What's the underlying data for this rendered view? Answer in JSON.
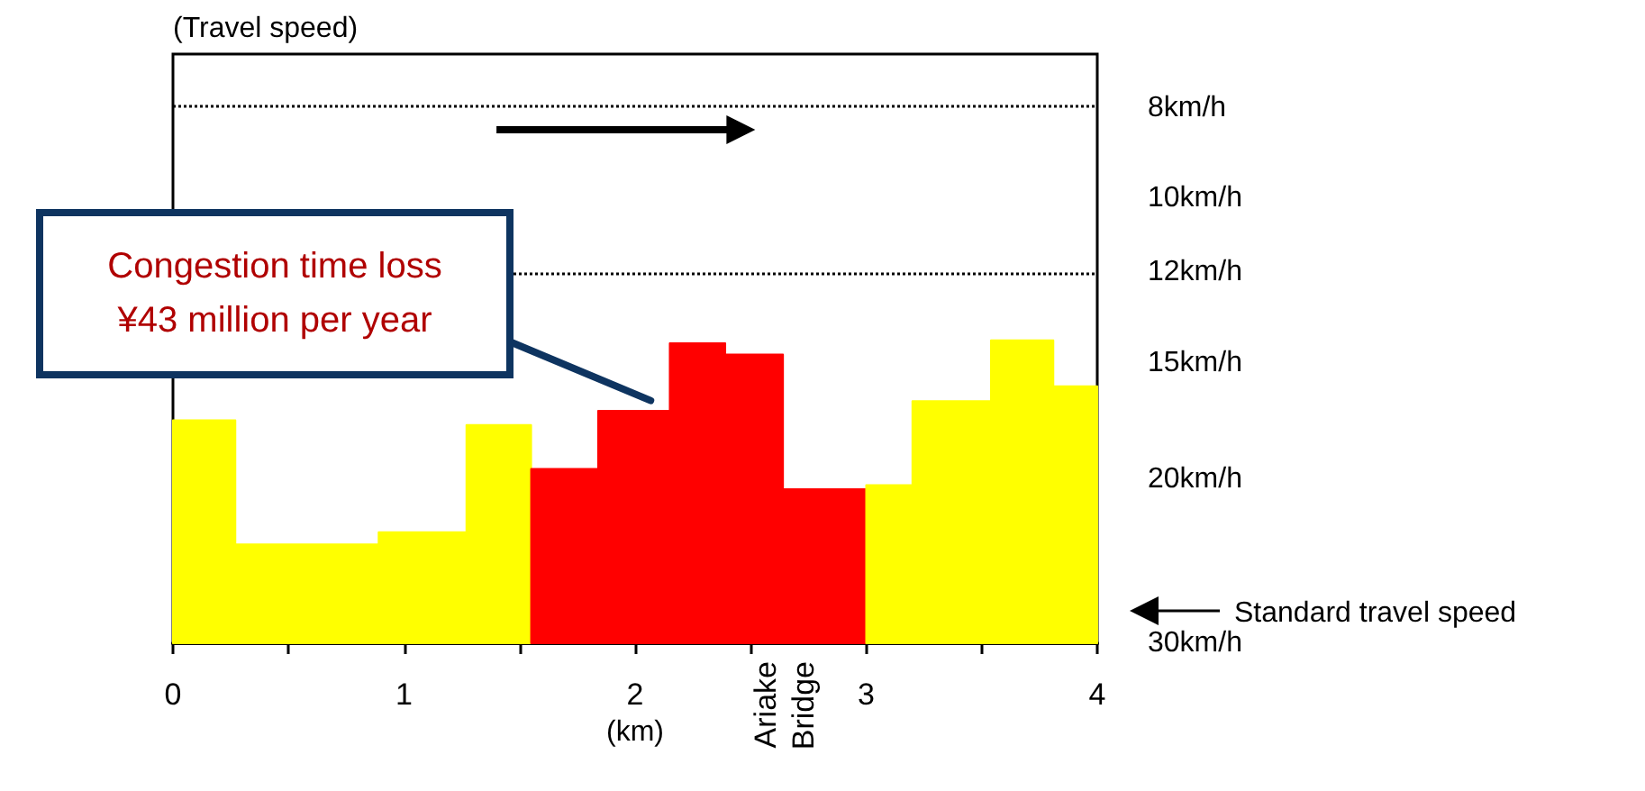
{
  "chart_data": {
    "type": "area",
    "xlabel": "(km)",
    "ylabel": "(Travel speed)",
    "xlim": [
      0,
      4
    ],
    "xticks": [
      0,
      {
        "value": 0.5,
        "label": null
      },
      1,
      {
        "value": 1.5,
        "label": null
      },
      2,
      {
        "value": 2.5,
        "label": null
      },
      3,
      {
        "value": 3.5,
        "label": null
      },
      4
    ],
    "ylim": [
      30,
      7
    ],
    "yticks": [
      {
        "value": 30,
        "label": "30km/h"
      },
      {
        "value": 20,
        "label": "20km/h"
      },
      {
        "value": 15,
        "label": "15km/h"
      },
      {
        "value": 12,
        "label": "12km/h"
      },
      {
        "value": 10,
        "label": "10km/h"
      },
      {
        "value": 8,
        "label": "8km/h"
      }
    ],
    "series": [
      {
        "color": "#ffff00",
        "x": [
          0,
          0,
          0.27,
          0.27,
          0.89,
          0.89,
          1.27,
          1.27,
          1.55,
          1.55
        ],
        "values": [
          30,
          17.3,
          17.3,
          23.5,
          23.5,
          22.8,
          22.8,
          17.5,
          17.5,
          30
        ]
      },
      {
        "color": "#ff0000",
        "x": [
          1.55,
          1.55,
          1.84,
          1.84,
          2.15,
          2.15,
          2.39,
          2.39,
          2.64,
          2.64,
          3.0,
          3.0
        ],
        "values": [
          30,
          19.5,
          19.5,
          16.9,
          16.9,
          14.3,
          14.3,
          14.7,
          14.7,
          20.5,
          20.5,
          30
        ]
      },
      {
        "color": "#ffff00",
        "x": [
          3.0,
          3.0,
          3.2,
          3.2,
          3.54,
          3.54,
          3.81,
          3.81,
          4.0,
          4.0
        ],
        "values": [
          30,
          20.3,
          20.3,
          16.5,
          16.5,
          14.2,
          14.2,
          15.9,
          15.9,
          30
        ]
      }
    ],
    "ref_lines": [
      {
        "axis": "y",
        "value": 8,
        "label": null,
        "line_style": "dotted",
        "color": "#000000"
      },
      {
        "axis": "y",
        "value": 12,
        "label": null,
        "line_style": "dotted",
        "color": "#000000"
      }
    ],
    "annotations": [
      "Congestion time loss\n¥43 million per year",
      "Ariake Bridge",
      "Standard travel speed"
    ],
    "log": "y"
  }
}
